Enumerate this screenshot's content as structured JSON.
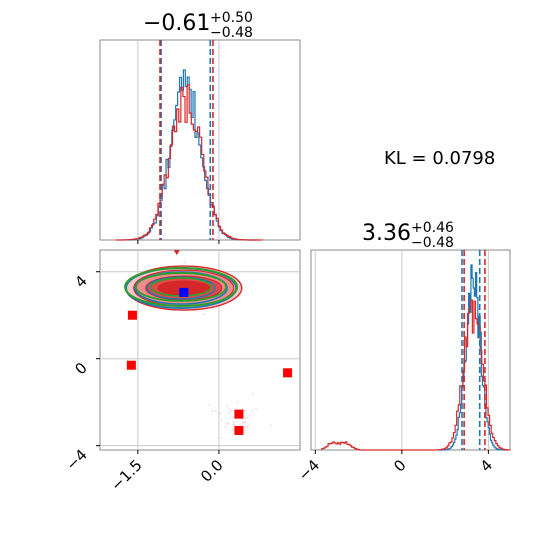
{
  "chart_data": {
    "type": "corner",
    "annotation": "KL = 0.0798",
    "colors": {
      "blue": "#1f77b4",
      "red": "#d62728",
      "green": "#2ca02c",
      "square_red": "#ff0000",
      "square_blue": "#0000ff"
    },
    "panels": [
      {
        "id": "hist-param1",
        "type": "histogram",
        "title": {
          "median": "−0.61",
          "plus": "+0.50",
          "minus": "−0.48"
        },
        "xlim": [
          -2.2,
          1.5
        ],
        "mean": -0.61,
        "sd": 0.28,
        "quantile_lines": {
          "blue": [
            -1.07,
            -0.16
          ],
          "red": [
            -1.09,
            -0.11
          ]
        }
      },
      {
        "id": "hist-param2",
        "type": "histogram",
        "title": {
          "median": "3.36",
          "plus": "+0.46",
          "minus": "−0.48"
        },
        "xlim": [
          -4.2,
          5.0
        ],
        "xticks": [
          -4,
          0,
          4
        ],
        "xtick_labels": [
          "−4",
          "0",
          "4"
        ],
        "mean": 3.3,
        "sd": 0.35,
        "quantile_lines": {
          "blue": [
            2.78,
            3.6
          ],
          "red": [
            2.88,
            3.84
          ]
        },
        "outlier_bumps": [
          -3.2,
          -2.6
        ]
      },
      {
        "id": "joint",
        "type": "contour-scatter",
        "xlim": [
          -2.2,
          1.5
        ],
        "ylim": [
          -4.2,
          5.0
        ],
        "xticks": [
          -1.5,
          0.0
        ],
        "xtick_labels": [
          "−1.5",
          "0.0"
        ],
        "yticks": [
          -4,
          0,
          4
        ],
        "ytick_labels": [
          "−4",
          "0",
          "4"
        ],
        "red_contour_center": [
          -0.65,
          3.25
        ],
        "blue_contour_center": [
          -0.7,
          3.25
        ],
        "green_contour_center": [
          -0.7,
          3.3
        ],
        "blue_square": [
          -0.65,
          3.05
        ],
        "red_squares": [
          [
            -1.6,
            2.0
          ],
          [
            -1.62,
            -0.3
          ],
          [
            1.27,
            -0.65
          ],
          [
            0.37,
            -2.55
          ],
          [
            0.37,
            -3.3
          ]
        ]
      }
    ]
  }
}
